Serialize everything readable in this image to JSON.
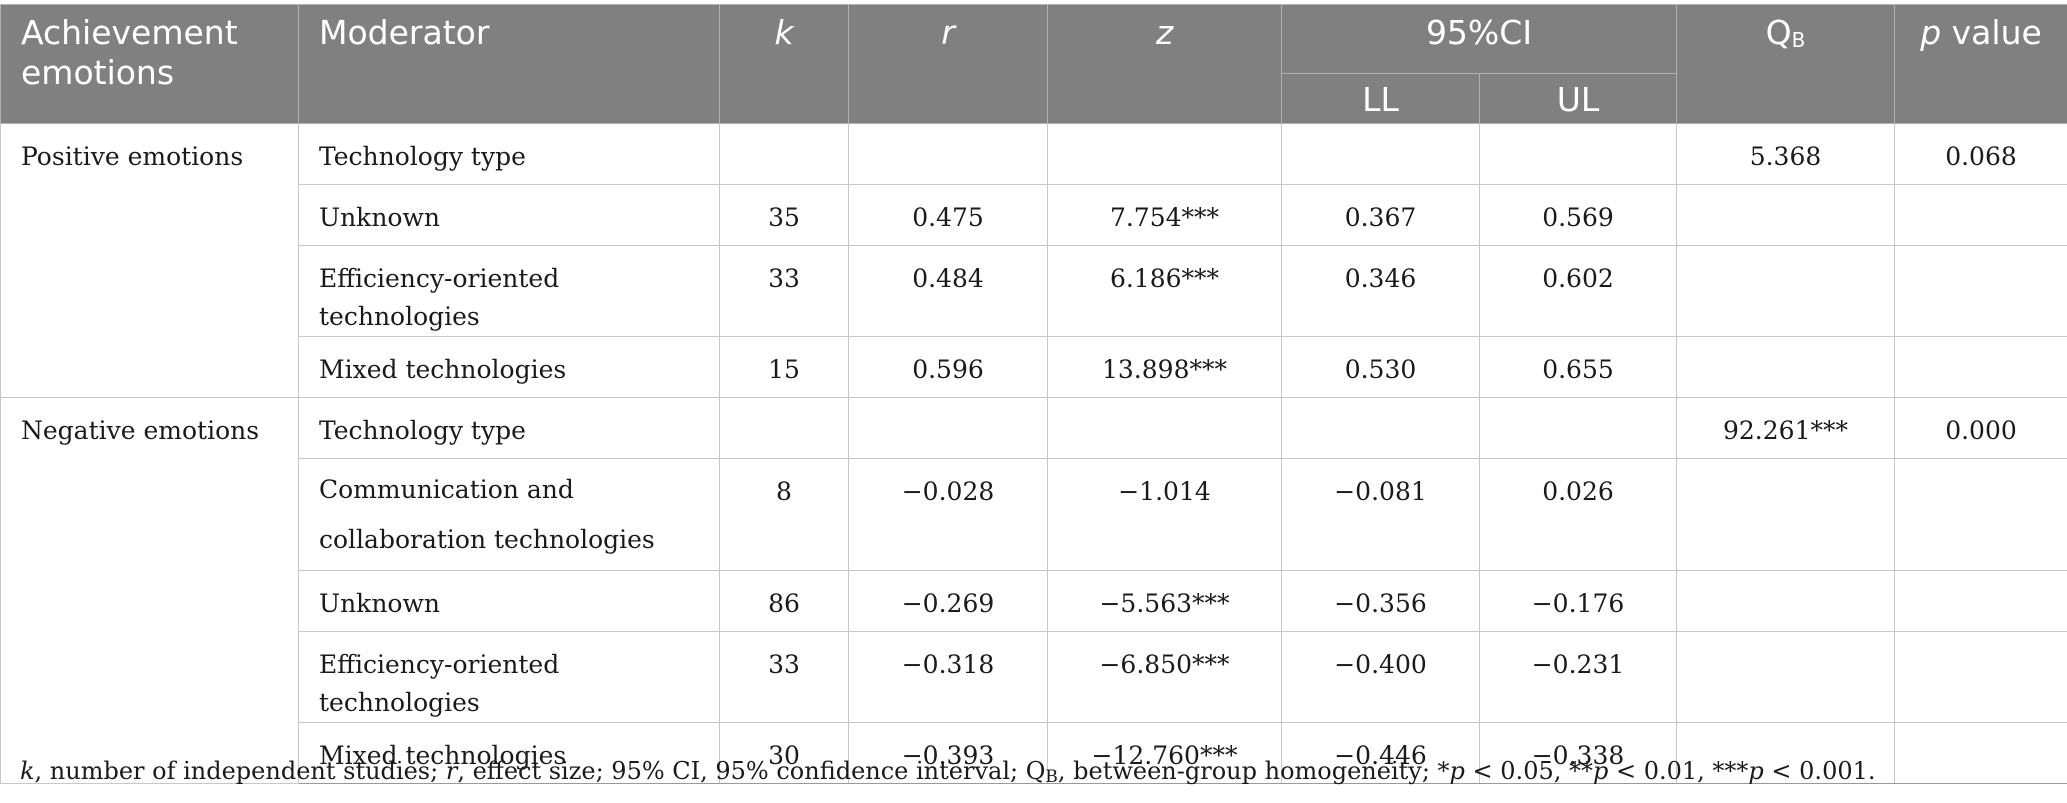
{
  "header": {
    "col1": "Achievement emotions",
    "col2": "Moderator",
    "col3": "k",
    "col4": "r",
    "col5": "z",
    "ci": "95%CI",
    "ll": "LL",
    "ul": "UL",
    "qb_main": "Q",
    "qb_sub": "B",
    "p_italic": "p",
    "p_rest": " value"
  },
  "groups": {
    "positive": "Positive emotions",
    "negative": "Negative emotions"
  },
  "rows": [
    {
      "moderator": "Technology type",
      "k": "",
      "r": "",
      "z": "",
      "ll": "",
      "ul": "",
      "qb": "5.368",
      "p": "0.068"
    },
    {
      "moderator": "Unknown",
      "k": "35",
      "r": "0.475",
      "z": "7.754***",
      "ll": "0.367",
      "ul": "0.569",
      "qb": "",
      "p": ""
    },
    {
      "moderator": "Efficiency-oriented technologies",
      "k": "33",
      "r": "0.484",
      "z": "6.186***",
      "ll": "0.346",
      "ul": "0.602",
      "qb": "",
      "p": ""
    },
    {
      "moderator": "Mixed technologies",
      "k": "15",
      "r": "0.596",
      "z": "13.898***",
      "ll": "0.530",
      "ul": "0.655",
      "qb": "",
      "p": ""
    },
    {
      "moderator": "Technology type",
      "k": "",
      "r": "",
      "z": "",
      "ll": "",
      "ul": "",
      "qb": "92.261***",
      "p": "0.000"
    },
    {
      "moderator_line1": "Communication and",
      "moderator_line2": "collaboration technologies",
      "k": "8",
      "r": "−0.028",
      "z": "−1.014",
      "ll": "−0.081",
      "ul": "0.026",
      "qb": "",
      "p": ""
    },
    {
      "moderator": "Unknown",
      "k": "86",
      "r": "−0.269",
      "z": "−5.563***",
      "ll": "−0.356",
      "ul": "−0.176",
      "qb": "",
      "p": ""
    },
    {
      "moderator": "Efficiency-oriented technologies",
      "k": "33",
      "r": "−0.318",
      "z": "−6.850***",
      "ll": "−0.400",
      "ul": "−0.231",
      "qb": "",
      "p": ""
    },
    {
      "moderator": "Mixed technologies",
      "k": "30",
      "r": "−0.393",
      "z": "−12.760***",
      "ll": "−0.446",
      "ul": "−0.338",
      "qb": "",
      "p": ""
    }
  ],
  "note": {
    "k": "k",
    "k_text": ", number of independent studies; ",
    "r": "r",
    "r_text": ", effect size; 95% CI, 95% confidence interval; Q",
    "qb_sub": "B",
    "qb_text": ", between-group homogeneity; *",
    "p1": "p",
    "p1_text": " < 0.05, **",
    "p2": "p",
    "p2_text": " < 0.01, ***",
    "p3": "p",
    "p3_text": " < 0.001."
  }
}
